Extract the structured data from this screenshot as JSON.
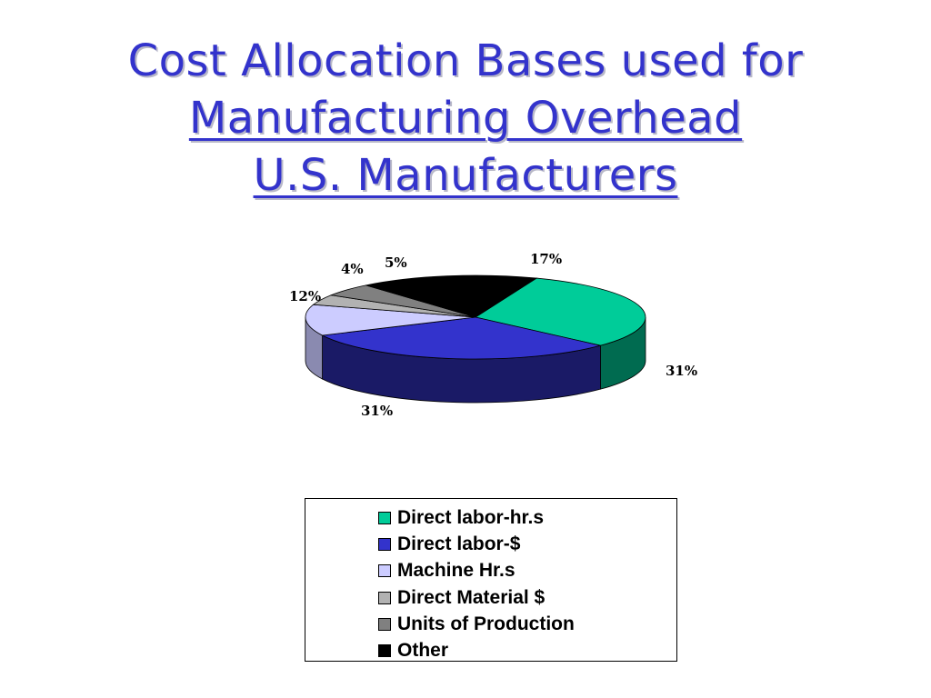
{
  "slide": {
    "title_line1": "Cost Allocation Bases used for",
    "title_line2": "Manufacturing Overhead",
    "title_line3": "U.S. Manufacturers"
  },
  "chart_data": {
    "type": "pie",
    "three_d": true,
    "slices": [
      {
        "name": "Direct labor-hr.s",
        "value": 31,
        "label": "31%",
        "color": "#00cc99",
        "side_color": "#006b50"
      },
      {
        "name": "Direct labor-$",
        "value": 31,
        "label": "31%",
        "color": "#3333cc",
        "side_color": "#1a1a66"
      },
      {
        "name": "Machine Hr.s",
        "value": 12,
        "label": "12%",
        "color": "#ccccff",
        "side_color": "#8a8ab0"
      },
      {
        "name": "Direct Material $",
        "value": 4,
        "label": "4%",
        "color": "#b2b2b2",
        "side_color": "#707070"
      },
      {
        "name": "Units of Production",
        "value": 5,
        "label": "5%",
        "color": "#808080",
        "side_color": "#505050"
      },
      {
        "name": "Other",
        "value": 17,
        "label": "17%",
        "color": "#000000",
        "side_color": "#000000"
      }
    ],
    "legend": {
      "position": "bottom",
      "items": [
        "Direct labor-hr.s",
        "Direct labor-$",
        "Machine Hr.s",
        "Direct Material $",
        "Units of Production",
        "Other"
      ]
    }
  }
}
